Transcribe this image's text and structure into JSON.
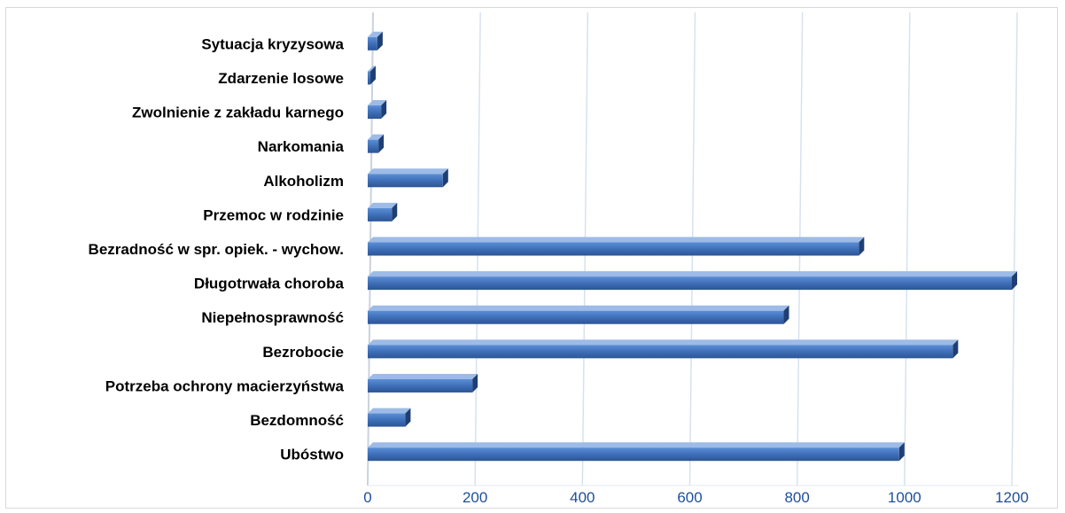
{
  "chart_data": {
    "type": "bar",
    "orientation": "horizontal",
    "title": "",
    "xlabel": "",
    "ylabel": "",
    "categories": [
      "Ubóstwo",
      "Bezdomność",
      "Potrzeba ochrony macierzyństwa",
      "Bezrobocie",
      "Niepełnosprawność",
      "Długotrwała choroba",
      "Bezradność w spr. opiek. - wychow.",
      "Przemoc w rodzinie",
      "Alkoholizm",
      "Narkomania",
      "Zwolnienie z zakładu karnego",
      "Zdarzenie losowe",
      "Sytuacja kryzysowa"
    ],
    "values": [
      990,
      70,
      195,
      1090,
      775,
      1200,
      915,
      45,
      140,
      20,
      25,
      5,
      18
    ],
    "xlim": [
      0,
      1200
    ],
    "x_ticks": [
      0,
      200,
      400,
      600,
      800,
      1000,
      1200
    ],
    "grid": true,
    "legend": "none",
    "colors": {
      "bar_front": "#4a7ec7",
      "bar_top": "#9dbbe6",
      "bar_side": "#1f3f73",
      "grid": "#d6e2f0",
      "tick_text": "#1f4e9a"
    }
  }
}
